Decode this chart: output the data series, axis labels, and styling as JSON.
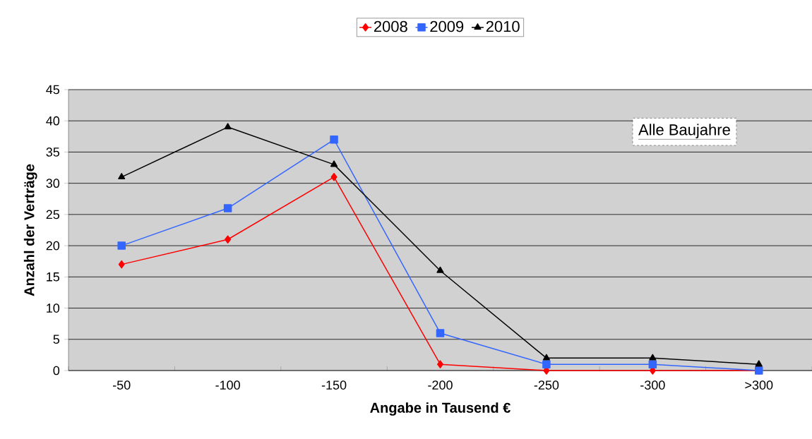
{
  "chart_data": {
    "type": "line",
    "xlabel": "Angabe in Tausend €",
    "ylabel": "Anzahl der Verträge",
    "categories": [
      "-50",
      "-100",
      "-150",
      "-200",
      "-250",
      "-300",
      ">300"
    ],
    "series": [
      {
        "name": "2008",
        "color": "#ff0000",
        "marker": "diamond",
        "values": [
          17,
          21,
          31,
          1,
          0,
          0,
          0
        ]
      },
      {
        "name": "2009",
        "color": "#3366ff",
        "marker": "square",
        "values": [
          20,
          26,
          37,
          6,
          1,
          1,
          0
        ]
      },
      {
        "name": "2010",
        "color": "#000000",
        "marker": "triangle",
        "values": [
          31,
          39,
          33,
          16,
          2,
          2,
          1
        ]
      }
    ],
    "annotations": [
      "Alle Baujahre"
    ],
    "ylim": [
      0,
      45
    ],
    "yticks": [
      0,
      5,
      10,
      15,
      20,
      25,
      30,
      35,
      40,
      45
    ],
    "grid": "y",
    "legend": "top",
    "line_style": "solid"
  }
}
